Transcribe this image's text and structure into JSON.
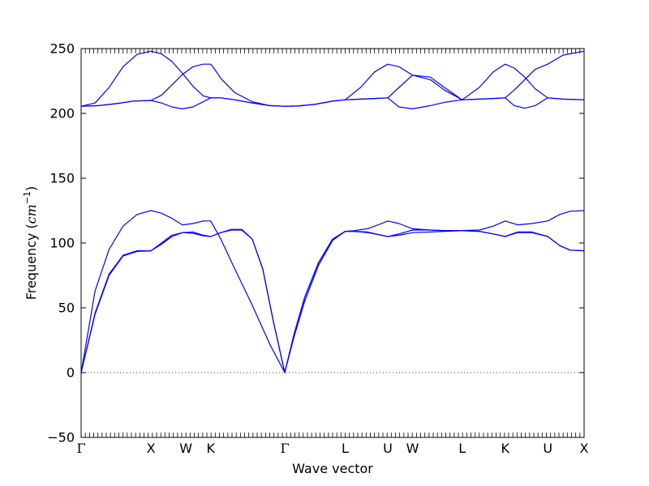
{
  "chart_data": {
    "type": "line",
    "title": "",
    "xlabel": "Wave vector",
    "ylabel_text": "Frequency (",
    "ylabel_unit_base": "cm",
    "ylabel_unit_exp": "−1",
    "ylabel_close": ")",
    "ylim": [
      -50,
      250
    ],
    "yticks": [
      -50,
      0,
      50,
      100,
      150,
      200,
      250
    ],
    "xlim": [
      0,
      7.2
    ],
    "kpoints": [
      {
        "label": "Γ",
        "x": 0.0
      },
      {
        "label": "X",
        "x": 1.0
      },
      {
        "label": "W",
        "x": 1.5
      },
      {
        "label": "K",
        "x": 1.855
      },
      {
        "label": "Γ",
        "x": 2.915
      },
      {
        "label": "L",
        "x": 3.78
      },
      {
        "label": "U",
        "x": 4.39
      },
      {
        "label": "W",
        "x": 4.745
      },
      {
        "label": "L",
        "x": 5.455
      },
      {
        "label": "K",
        "x": 6.07
      },
      {
        "label": "U",
        "x": 6.68
      },
      {
        "label": "X",
        "x": 7.2
      }
    ],
    "zero_line": {
      "y": 0,
      "style": "dotted"
    },
    "series_color": "#0000ff",
    "series": [
      {
        "points": [
          [
            0.0,
            0
          ],
          [
            0.2,
            63
          ],
          [
            0.4,
            95
          ],
          [
            0.6,
            113
          ],
          [
            0.8,
            122
          ],
          [
            1.0,
            125
          ],
          [
            1.15,
            123
          ],
          [
            1.3,
            119
          ],
          [
            1.45,
            114
          ],
          [
            1.6,
            115
          ],
          [
            1.75,
            117
          ],
          [
            1.855,
            117
          ],
          [
            2.0,
            103
          ],
          [
            2.2,
            80
          ],
          [
            2.45,
            52
          ],
          [
            2.7,
            22
          ],
          [
            2.915,
            0
          ],
          [
            3.05,
            28
          ],
          [
            3.2,
            55
          ],
          [
            3.4,
            83
          ],
          [
            3.6,
            102
          ],
          [
            3.78,
            109
          ],
          [
            3.9,
            109.5
          ],
          [
            4.1,
            111
          ],
          [
            4.3,
            115
          ],
          [
            4.39,
            117
          ],
          [
            4.55,
            115
          ],
          [
            4.745,
            111
          ],
          [
            5.0,
            110
          ],
          [
            5.2,
            109.6
          ],
          [
            5.455,
            109.6
          ],
          [
            5.7,
            110
          ],
          [
            5.9,
            113
          ],
          [
            6.07,
            117
          ],
          [
            6.25,
            114
          ],
          [
            6.45,
            115
          ],
          [
            6.68,
            117
          ],
          [
            6.85,
            122
          ],
          [
            7.0,
            124.5
          ],
          [
            7.2,
            125
          ]
        ]
      },
      {
        "points": [
          [
            0.0,
            0
          ],
          [
            0.2,
            45
          ],
          [
            0.4,
            75
          ],
          [
            0.6,
            90
          ],
          [
            0.8,
            93.5
          ],
          [
            1.0,
            94
          ],
          [
            1.15,
            99
          ],
          [
            1.3,
            105
          ],
          [
            1.45,
            108
          ],
          [
            1.6,
            108.5
          ],
          [
            1.75,
            106
          ],
          [
            1.855,
            105
          ],
          [
            2.0,
            108
          ],
          [
            2.15,
            110
          ],
          [
            2.3,
            110
          ],
          [
            2.45,
            103
          ],
          [
            2.6,
            80
          ],
          [
            2.75,
            40
          ],
          [
            2.915,
            0
          ],
          [
            3.05,
            30
          ],
          [
            3.2,
            58
          ],
          [
            3.4,
            85
          ],
          [
            3.6,
            103
          ],
          [
            3.78,
            109
          ],
          [
            3.9,
            109
          ],
          [
            4.1,
            108.5
          ],
          [
            4.3,
            106
          ],
          [
            4.39,
            105
          ],
          [
            4.55,
            106
          ],
          [
            4.745,
            108
          ],
          [
            5.0,
            108.5
          ],
          [
            5.2,
            109
          ],
          [
            5.455,
            109.5
          ],
          [
            5.7,
            109
          ],
          [
            5.9,
            107
          ],
          [
            6.07,
            105
          ],
          [
            6.25,
            108
          ],
          [
            6.45,
            108
          ],
          [
            6.68,
            105
          ],
          [
            6.85,
            98
          ],
          [
            7.0,
            94.5
          ],
          [
            7.2,
            94
          ]
        ]
      },
      {
        "points": [
          [
            0.0,
            0
          ],
          [
            0.2,
            46
          ],
          [
            0.4,
            76
          ],
          [
            0.6,
            90.5
          ],
          [
            0.8,
            94
          ],
          [
            1.0,
            94
          ],
          [
            1.15,
            100
          ],
          [
            1.3,
            106
          ],
          [
            1.45,
            108
          ],
          [
            1.6,
            107.5
          ],
          [
            1.75,
            105.5
          ],
          [
            1.855,
            105
          ],
          [
            2.0,
            108
          ],
          [
            2.15,
            110.5
          ],
          [
            2.3,
            110.5
          ],
          [
            2.45,
            103
          ],
          [
            2.6,
            80
          ],
          [
            2.75,
            40
          ],
          [
            2.915,
            0
          ],
          [
            3.05,
            30
          ],
          [
            3.2,
            58
          ],
          [
            3.4,
            85
          ],
          [
            3.6,
            103
          ],
          [
            3.78,
            109
          ],
          [
            3.9,
            109
          ],
          [
            4.1,
            108
          ],
          [
            4.3,
            106
          ],
          [
            4.39,
            105
          ],
          [
            4.55,
            107
          ],
          [
            4.745,
            110
          ],
          [
            5.0,
            110
          ],
          [
            5.2,
            109.5
          ],
          [
            5.455,
            109.5
          ],
          [
            5.7,
            109
          ],
          [
            5.9,
            107
          ],
          [
            6.07,
            105
          ],
          [
            6.25,
            108.5
          ],
          [
            6.45,
            108.5
          ],
          [
            6.68,
            105
          ],
          [
            6.85,
            98
          ],
          [
            7.0,
            94.5
          ],
          [
            7.2,
            94
          ]
        ]
      },
      {
        "points": [
          [
            0.0,
            205.5
          ],
          [
            0.25,
            206
          ],
          [
            0.5,
            207.5
          ],
          [
            0.75,
            209.5
          ],
          [
            1.0,
            210
          ],
          [
            1.15,
            208
          ],
          [
            1.3,
            205
          ],
          [
            1.45,
            203.5
          ],
          [
            1.6,
            205
          ],
          [
            1.75,
            209
          ],
          [
            1.855,
            212
          ],
          [
            2.0,
            212
          ],
          [
            2.2,
            210.5
          ],
          [
            2.45,
            208
          ],
          [
            2.7,
            206
          ],
          [
            2.915,
            205.5
          ],
          [
            3.1,
            205.7
          ],
          [
            3.35,
            207
          ],
          [
            3.6,
            209.5
          ],
          [
            3.78,
            210.5
          ],
          [
            4.0,
            211
          ],
          [
            4.2,
            211.5
          ],
          [
            4.39,
            212
          ],
          [
            4.55,
            205
          ],
          [
            4.745,
            203.5
          ],
          [
            5.0,
            206
          ],
          [
            5.2,
            208.5
          ],
          [
            5.455,
            210.5
          ],
          [
            5.7,
            211
          ],
          [
            5.9,
            211.5
          ],
          [
            6.07,
            212
          ],
          [
            6.2,
            206
          ],
          [
            6.35,
            204
          ],
          [
            6.5,
            206
          ],
          [
            6.68,
            212
          ],
          [
            6.9,
            211
          ],
          [
            7.2,
            210.5
          ]
        ]
      },
      {
        "points": [
          [
            0.0,
            205.5
          ],
          [
            0.25,
            206
          ],
          [
            0.5,
            207.5
          ],
          [
            0.75,
            209.5
          ],
          [
            1.0,
            210
          ],
          [
            1.15,
            214
          ],
          [
            1.3,
            222
          ],
          [
            1.45,
            230
          ],
          [
            1.6,
            236
          ],
          [
            1.75,
            238
          ],
          [
            1.855,
            238
          ],
          [
            1.9,
            235
          ],
          [
            2.0,
            227
          ],
          [
            2.2,
            216
          ],
          [
            2.45,
            209
          ],
          [
            2.7,
            206
          ],
          [
            2.915,
            205.5
          ],
          [
            3.1,
            205.7
          ],
          [
            3.35,
            207
          ],
          [
            3.6,
            209.5
          ],
          [
            3.78,
            210.5
          ],
          [
            4.0,
            211
          ],
          [
            4.2,
            211.5
          ],
          [
            4.39,
            212
          ],
          [
            4.55,
            220
          ],
          [
            4.745,
            229.5
          ],
          [
            5.0,
            228
          ],
          [
            5.2,
            220
          ],
          [
            5.455,
            210.5
          ],
          [
            5.7,
            220
          ],
          [
            5.9,
            232
          ],
          [
            6.07,
            238
          ],
          [
            6.2,
            235
          ],
          [
            6.35,
            228
          ],
          [
            6.5,
            219
          ],
          [
            6.68,
            212
          ],
          [
            6.9,
            211
          ],
          [
            7.2,
            210.5
          ]
        ]
      },
      {
        "points": [
          [
            0.0,
            205.5
          ],
          [
            0.2,
            208
          ],
          [
            0.4,
            220
          ],
          [
            0.6,
            236
          ],
          [
            0.8,
            245.5
          ],
          [
            1.0,
            248
          ],
          [
            1.15,
            246
          ],
          [
            1.3,
            240
          ],
          [
            1.45,
            231
          ],
          [
            1.6,
            221
          ],
          [
            1.75,
            213.5
          ],
          [
            1.855,
            212
          ],
          [
            2.0,
            212
          ],
          [
            2.2,
            210.5
          ],
          [
            2.45,
            208
          ],
          [
            2.7,
            206
          ],
          [
            2.915,
            205.5
          ],
          [
            3.1,
            205.7
          ],
          [
            3.35,
            207
          ],
          [
            3.6,
            209.5
          ],
          [
            3.78,
            210.5
          ],
          [
            4.0,
            220
          ],
          [
            4.2,
            232
          ],
          [
            4.39,
            238
          ],
          [
            4.55,
            236
          ],
          [
            4.745,
            229.5
          ],
          [
            5.0,
            226
          ],
          [
            5.2,
            218
          ],
          [
            5.455,
            210.5
          ],
          [
            5.7,
            211
          ],
          [
            5.9,
            211.5
          ],
          [
            6.07,
            212
          ],
          [
            6.2,
            218
          ],
          [
            6.35,
            226
          ],
          [
            6.5,
            234
          ],
          [
            6.68,
            238
          ],
          [
            6.9,
            245
          ],
          [
            7.2,
            248
          ]
        ]
      }
    ]
  }
}
